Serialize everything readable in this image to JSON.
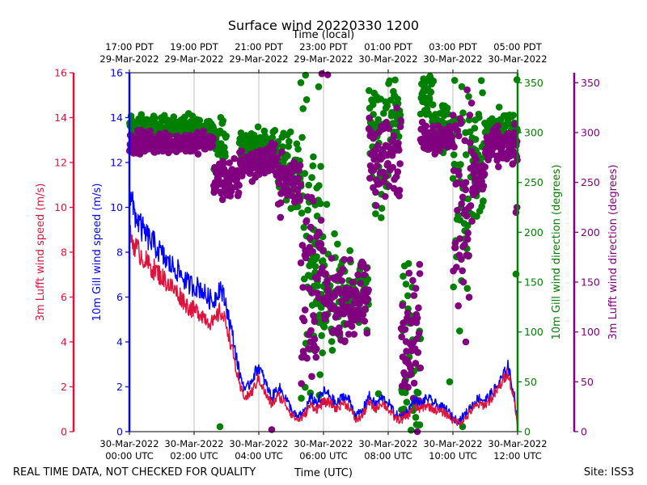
{
  "chart_data": {
    "type": "line+scatter",
    "title": "Surface wind 20220330 1200",
    "top_axis_label": "Time (local)",
    "xlabel": "Time (UTC)",
    "footer_left": "REAL TIME DATA, NOT CHECKED FOR QUALITY",
    "footer_right": "Site: ISS3",
    "x_range_hours": [
      0,
      12
    ],
    "x_ticks_utc": [
      {
        "h": 0,
        "date": "30-Mar-2022",
        "time": "00:00 UTC"
      },
      {
        "h": 2,
        "date": "30-Mar-2022",
        "time": "02:00 UTC"
      },
      {
        "h": 4,
        "date": "30-Mar-2022",
        "time": "04:00 UTC"
      },
      {
        "h": 6,
        "date": "30-Mar-2022",
        "time": "06:00 UTC"
      },
      {
        "h": 8,
        "date": "30-Mar-2022",
        "time": "08:00 UTC"
      },
      {
        "h": 10,
        "date": "30-Mar-2022",
        "time": "10:00 UTC"
      },
      {
        "h": 12,
        "date": "30-Mar-2022",
        "time": "12:00 UTC"
      }
    ],
    "x_ticks_local": [
      {
        "h": 0,
        "time": "17:00 PDT",
        "date": "29-Mar-2022"
      },
      {
        "h": 2,
        "time": "19:00 PDT",
        "date": "29-Mar-2022"
      },
      {
        "h": 4,
        "time": "21:00 PDT",
        "date": "29-Mar-2022"
      },
      {
        "h": 6,
        "time": "23:00 PDT",
        "date": "29-Mar-2022"
      },
      {
        "h": 8,
        "time": "01:00 PDT",
        "date": "30-Mar-2022"
      },
      {
        "h": 10,
        "time": "03:00 PDT",
        "date": "30-Mar-2022"
      },
      {
        "h": 12,
        "time": "05:00 PDT",
        "date": "30-Mar-2022"
      }
    ],
    "speed_axes": {
      "ylim": [
        0,
        16
      ],
      "ticks": [
        0,
        2,
        4,
        6,
        8,
        10,
        12,
        14,
        16
      ]
    },
    "direction_axes": {
      "ylim": [
        0,
        360
      ],
      "ticks": [
        0,
        50,
        100,
        150,
        200,
        250,
        300,
        350
      ]
    },
    "axis_labels": {
      "lufft_speed": "3m Lufft wind speed (m/s)",
      "gill_speed": "10m Gill wind speed (m/s)",
      "gill_dir": "10m Gill wind direction (degrees)",
      "lufft_dir": "3m Lufft wind direction (degrees)"
    },
    "colors": {
      "lufft_speed": "#dc143c",
      "gill_speed": "#0000ff",
      "gill_dir": "#008000",
      "lufft_dir": "#800080",
      "grid": "#b0b0b0"
    },
    "series": [
      {
        "name": "10m Gill wind speed",
        "type": "line",
        "axis": "speed",
        "points": [
          [
            0,
            10.5
          ],
          [
            0.2,
            9.6
          ],
          [
            0.4,
            9.0
          ],
          [
            0.6,
            8.6
          ],
          [
            0.8,
            8.3
          ],
          [
            1.0,
            7.9
          ],
          [
            1.2,
            7.5
          ],
          [
            1.4,
            7.3
          ],
          [
            1.6,
            7.0
          ],
          [
            1.8,
            6.6
          ],
          [
            2.0,
            6.5
          ],
          [
            2.2,
            6.4
          ],
          [
            2.4,
            6.0
          ],
          [
            2.6,
            5.8
          ],
          [
            2.8,
            6.5
          ],
          [
            3.0,
            5.6
          ],
          [
            3.2,
            4.2
          ],
          [
            3.4,
            2.6
          ],
          [
            3.6,
            1.8
          ],
          [
            3.8,
            2.4
          ],
          [
            4.0,
            2.9
          ],
          [
            4.2,
            2.2
          ],
          [
            4.4,
            1.5
          ],
          [
            4.6,
            2.0
          ],
          [
            4.8,
            1.6
          ],
          [
            5.0,
            1.0
          ],
          [
            5.2,
            0.6
          ],
          [
            5.4,
            0.9
          ],
          [
            5.6,
            1.5
          ],
          [
            5.8,
            1.3
          ],
          [
            6.0,
            1.8
          ],
          [
            6.2,
            1.6
          ],
          [
            6.4,
            1.2
          ],
          [
            6.6,
            1.6
          ],
          [
            6.8,
            1.4
          ],
          [
            7.0,
            0.7
          ],
          [
            7.2,
            0.9
          ],
          [
            7.4,
            1.6
          ],
          [
            7.6,
            1.2
          ],
          [
            7.8,
            1.5
          ],
          [
            8.0,
            1.3
          ],
          [
            8.2,
            0.8
          ],
          [
            8.4,
            0.6
          ],
          [
            8.6,
            0.9
          ],
          [
            8.8,
            1.4
          ],
          [
            9.0,
            1.2
          ],
          [
            9.2,
            1.5
          ],
          [
            9.4,
            1.3
          ],
          [
            9.6,
            1.1
          ],
          [
            9.8,
            1.0
          ],
          [
            10.0,
            0.6
          ],
          [
            10.2,
            0.5
          ],
          [
            10.4,
            0.8
          ],
          [
            10.6,
            1.2
          ],
          [
            10.8,
            1.5
          ],
          [
            11.0,
            1.4
          ],
          [
            11.2,
            1.7
          ],
          [
            11.4,
            2.1
          ],
          [
            11.6,
            2.6
          ],
          [
            11.7,
            3.0
          ],
          [
            11.8,
            2.2
          ],
          [
            11.9,
            1.6
          ],
          [
            12.0,
            0.3
          ]
        ],
        "noise": 0.8
      },
      {
        "name": "3m Lufft wind speed",
        "type": "line",
        "axis": "speed",
        "points": [
          [
            0,
            8.8
          ],
          [
            0.2,
            8.2
          ],
          [
            0.4,
            7.8
          ],
          [
            0.6,
            7.4
          ],
          [
            0.8,
            7.2
          ],
          [
            1.0,
            6.9
          ],
          [
            1.2,
            6.6
          ],
          [
            1.4,
            6.3
          ],
          [
            1.6,
            6.0
          ],
          [
            1.8,
            5.6
          ],
          [
            2.0,
            5.4
          ],
          [
            2.2,
            5.3
          ],
          [
            2.4,
            5.0
          ],
          [
            2.6,
            4.8
          ],
          [
            2.8,
            5.4
          ],
          [
            3.0,
            4.8
          ],
          [
            3.2,
            3.5
          ],
          [
            3.4,
            2.0
          ],
          [
            3.6,
            1.5
          ],
          [
            3.8,
            1.8
          ],
          [
            4.0,
            2.4
          ],
          [
            4.2,
            1.7
          ],
          [
            4.4,
            1.2
          ],
          [
            4.6,
            1.6
          ],
          [
            4.8,
            1.3
          ],
          [
            5.0,
            0.8
          ],
          [
            5.2,
            0.5
          ],
          [
            5.4,
            0.7
          ],
          [
            5.6,
            1.2
          ],
          [
            5.8,
            1.0
          ],
          [
            6.0,
            1.3
          ],
          [
            6.2,
            1.3
          ],
          [
            6.4,
            1.0
          ],
          [
            6.6,
            1.3
          ],
          [
            6.8,
            1.1
          ],
          [
            7.0,
            0.5
          ],
          [
            7.2,
            0.7
          ],
          [
            7.4,
            1.3
          ],
          [
            7.6,
            1.0
          ],
          [
            7.8,
            1.3
          ],
          [
            8.0,
            1.0
          ],
          [
            8.2,
            0.6
          ],
          [
            8.4,
            0.5
          ],
          [
            8.6,
            0.7
          ],
          [
            8.8,
            1.1
          ],
          [
            9.0,
            1.0
          ],
          [
            9.2,
            1.2
          ],
          [
            9.4,
            1.0
          ],
          [
            9.6,
            0.9
          ],
          [
            9.8,
            0.8
          ],
          [
            10.0,
            0.5
          ],
          [
            10.2,
            0.4
          ],
          [
            10.4,
            0.6
          ],
          [
            10.6,
            1.0
          ],
          [
            10.8,
            1.2
          ],
          [
            11.0,
            1.2
          ],
          [
            11.2,
            1.5
          ],
          [
            11.4,
            1.9
          ],
          [
            11.6,
            2.4
          ],
          [
            11.7,
            2.7
          ],
          [
            11.8,
            2.0
          ],
          [
            11.9,
            1.4
          ],
          [
            12.0,
            0.2
          ]
        ],
        "noise": 0.75
      },
      {
        "name": "10m Gill wind direction",
        "type": "scatter",
        "axis": "direction",
        "segments": [
          {
            "h0": 0,
            "h1": 2.6,
            "center": 304,
            "spread": 14
          },
          {
            "h0": 2.6,
            "h1": 3.0,
            "center": 285,
            "spread": 35
          },
          {
            "h0": 3.4,
            "h1": 4.6,
            "center": 285,
            "spread": 20
          },
          {
            "h0": 4.6,
            "h1": 5.3,
            "center": 265,
            "spread": 40
          },
          {
            "h0": 5.3,
            "h1": 6.0,
            "center": 190,
            "spread": 160
          },
          {
            "h0": 5.6,
            "h1": 6.5,
            "center": 140,
            "spread": 60
          },
          {
            "h0": 6.5,
            "h1": 7.4,
            "center": 135,
            "spread": 40
          },
          {
            "h0": 7.4,
            "h1": 8.0,
            "center": 280,
            "spread": 90
          },
          {
            "h0": 8.0,
            "h1": 8.4,
            "center": 320,
            "spread": 45
          },
          {
            "h0": 8.4,
            "h1": 9.0,
            "center": 60,
            "spread": 120
          },
          {
            "h0": 9.0,
            "h1": 9.4,
            "center": 335,
            "spread": 30
          },
          {
            "h0": 9.4,
            "h1": 10.0,
            "center": 305,
            "spread": 30
          },
          {
            "h0": 10.0,
            "h1": 10.5,
            "center": 230,
            "spread": 140
          },
          {
            "h0": 10.5,
            "h1": 11.0,
            "center": 270,
            "spread": 70
          },
          {
            "h0": 11.0,
            "h1": 12.0,
            "center": 305,
            "spread": 18
          }
        ],
        "extra_points": [
          [
            2.8,
            5
          ],
          [
            5.3,
            350
          ],
          [
            5.85,
            346
          ],
          [
            6.1,
            228
          ],
          [
            7.7,
            38
          ],
          [
            9.9,
            50
          ],
          [
            10.3,
            5
          ],
          [
            11.95,
            158
          ],
          [
            11.98,
            353
          ]
        ]
      },
      {
        "name": "3m Lufft wind direction",
        "type": "scatter",
        "axis": "direction",
        "segments": [
          {
            "h0": 0,
            "h1": 2.6,
            "center": 290,
            "spread": 12
          },
          {
            "h0": 2.6,
            "h1": 3.4,
            "center": 252,
            "spread": 22
          },
          {
            "h0": 3.4,
            "h1": 4.6,
            "center": 270,
            "spread": 18
          },
          {
            "h0": 4.6,
            "h1": 5.3,
            "center": 250,
            "spread": 30
          },
          {
            "h0": 5.3,
            "h1": 6.0,
            "center": 150,
            "spread": 120
          },
          {
            "h0": 6.0,
            "h1": 7.4,
            "center": 130,
            "spread": 40
          },
          {
            "h0": 7.4,
            "h1": 8.4,
            "center": 275,
            "spread": 50
          },
          {
            "h0": 8.4,
            "h1": 9.0,
            "center": 100,
            "spread": 70
          },
          {
            "h0": 9.0,
            "h1": 10.0,
            "center": 295,
            "spread": 18
          },
          {
            "h0": 10.0,
            "h1": 10.6,
            "center": 240,
            "spread": 110
          },
          {
            "h0": 10.6,
            "h1": 11.0,
            "center": 255,
            "spread": 25
          },
          {
            "h0": 11.0,
            "h1": 12.0,
            "center": 285,
            "spread": 20
          }
        ],
        "extra_points": [
          [
            4.4,
            2
          ],
          [
            5.95,
            359
          ],
          [
            6.13,
            358
          ],
          [
            8.9,
            0
          ],
          [
            10.4,
            90
          ],
          [
            11.95,
            220
          ],
          [
            11.98,
            225
          ]
        ]
      }
    ]
  }
}
